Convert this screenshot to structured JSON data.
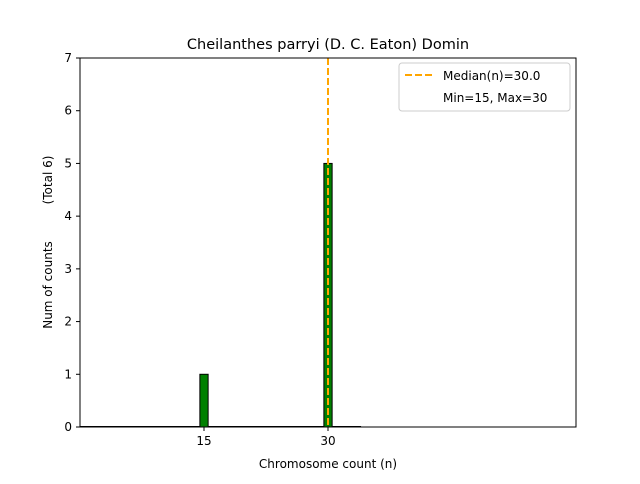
{
  "chart_data": {
    "type": "bar",
    "title": "Cheilanthes parryi (D. C. Eaton) Domin",
    "xlabel": "Chromosome count (n)",
    "ylabel": "Num of counts",
    "ylabel_total": "(Total 6)",
    "xlim": [
      0,
      60
    ],
    "ylim": [
      0,
      7
    ],
    "xticks": [
      15,
      30
    ],
    "yticks": [
      0,
      1,
      2,
      3,
      4,
      5,
      6,
      7
    ],
    "bar_width": 1,
    "bars": [
      {
        "x": 15,
        "value": 1
      },
      {
        "x": 30,
        "value": 5
      }
    ],
    "median_line": {
      "x": 30.0
    },
    "baseline_span": [
      0,
      34
    ],
    "legend": {
      "placement": "top-right",
      "entries": [
        "Median(n)=30.0",
        "Min=15, Max=30"
      ]
    },
    "colors": {
      "bar_fill": "#008000",
      "bar_edge": "#000000",
      "median": "#ffa500"
    },
    "grid": false
  }
}
